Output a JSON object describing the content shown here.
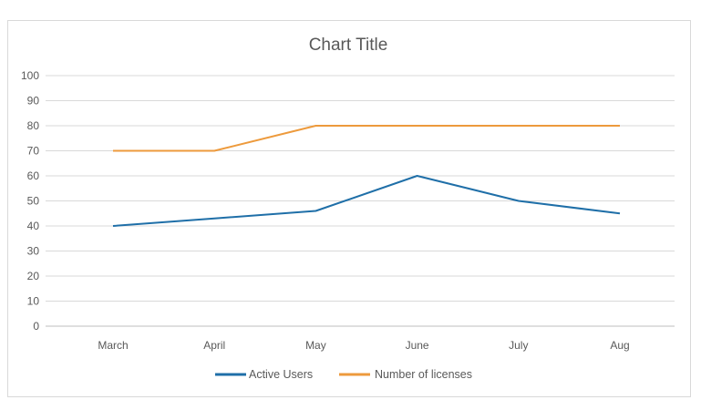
{
  "chart_data": {
    "type": "line",
    "title": "Chart Title",
    "xlabel": "",
    "ylabel": "",
    "categories": [
      "March",
      "April",
      "May",
      "June",
      "July",
      "Aug"
    ],
    "y_ticks": [
      "0",
      "10",
      "20",
      "30",
      "40",
      "50",
      "60",
      "70",
      "80",
      "90",
      "100"
    ],
    "ylim": [
      0,
      100
    ],
    "grid": true,
    "legend_position": "bottom",
    "series": [
      {
        "name": "Active Users",
        "values": [
          40,
          43,
          46,
          60,
          50,
          45
        ],
        "color": "#1f6fa8"
      },
      {
        "name": "Number of licenses",
        "values": [
          70,
          70,
          80,
          80,
          80,
          80
        ],
        "color": "#ed9a3c"
      }
    ]
  }
}
